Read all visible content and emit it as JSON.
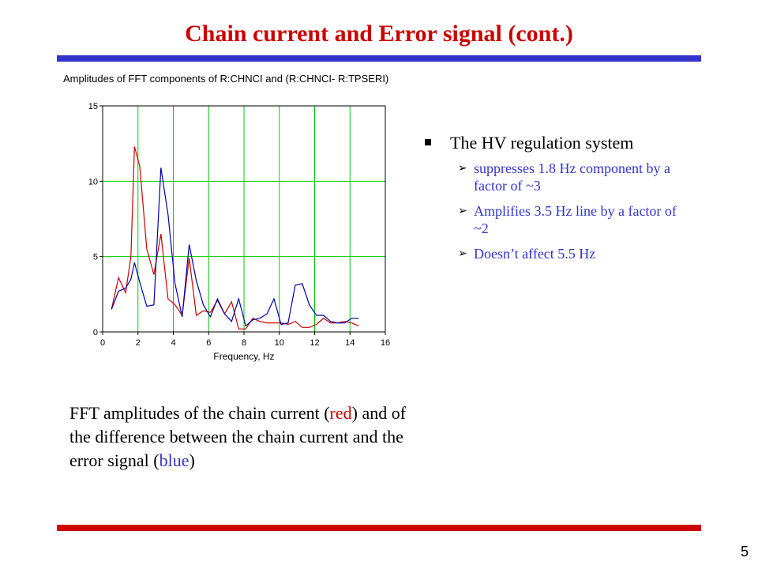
{
  "slide": {
    "title": "Chain current and Error signal  (cont.)",
    "page_number": "5"
  },
  "colors": {
    "title": "#cc0000",
    "top_rule": "#3333cc",
    "bottom_rule": "#cc0000",
    "grid": "#00cc00",
    "chain_current": "#cc0000",
    "difference": "#0000aa",
    "sub_bullet_text": "#3333cc"
  },
  "chart_data": {
    "type": "line",
    "title": "Amplitudes of FFT components of R:CHNCI and (R:CHNCI- R:TPSERI)",
    "xlabel": "Frequency, Hz",
    "ylabel": "",
    "xlim": [
      0,
      16
    ],
    "ylim": [
      0,
      15
    ],
    "x_ticks": [
      "0",
      "2",
      "4",
      "6",
      "8",
      "10",
      "12",
      "14",
      "16"
    ],
    "y_ticks": [
      "0",
      "5",
      "10",
      "15"
    ],
    "grid": true,
    "legend": "none",
    "series": [
      {
        "color": "#cc0000",
        "x": [
          0.5,
          0.9,
          1.3,
          1.6,
          1.8,
          2.1,
          2.5,
          2.9,
          3.3,
          3.7,
          4.1,
          4.5,
          4.9,
          5.3,
          5.7,
          6.1,
          6.5,
          6.9,
          7.3,
          7.7,
          8.1,
          8.5,
          8.9,
          9.3,
          9.7,
          10.1,
          10.5,
          10.9,
          11.3,
          11.7,
          12.1,
          12.5,
          12.9,
          13.3,
          13.7,
          14.1,
          14.5
        ],
        "values": [
          1.5,
          3.6,
          2.6,
          5.0,
          12.3,
          11.0,
          5.5,
          3.8,
          6.5,
          2.2,
          1.8,
          1.1,
          4.9,
          1.1,
          1.4,
          1.3,
          2.1,
          1.2,
          2.0,
          0.2,
          0.2,
          0.9,
          0.7,
          0.6,
          0.6,
          0.6,
          0.5,
          0.7,
          0.3,
          0.3,
          0.5,
          0.9,
          0.6,
          0.6,
          0.7,
          0.6,
          0.4
        ]
      },
      {
        "color": "#0000aa",
        "x": [
          0.5,
          0.9,
          1.3,
          1.6,
          1.8,
          2.1,
          2.5,
          2.9,
          3.3,
          3.7,
          4.1,
          4.5,
          4.9,
          5.3,
          5.7,
          6.1,
          6.5,
          6.9,
          7.3,
          7.7,
          8.1,
          8.5,
          8.9,
          9.3,
          9.7,
          10.1,
          10.5,
          10.9,
          11.3,
          11.7,
          12.1,
          12.5,
          12.9,
          13.3,
          13.7,
          14.1,
          14.5
        ],
        "values": [
          1.5,
          2.7,
          2.9,
          3.5,
          4.6,
          3.3,
          1.7,
          1.8,
          10.9,
          7.8,
          3.2,
          1.0,
          5.8,
          3.4,
          1.8,
          1.0,
          2.2,
          1.2,
          0.7,
          2.2,
          0.4,
          0.8,
          0.9,
          1.2,
          2.2,
          0.5,
          0.6,
          3.1,
          3.2,
          1.8,
          1.1,
          1.1,
          0.7,
          0.6,
          0.6,
          0.9,
          0.9
        ]
      }
    ]
  },
  "bullets": {
    "main": "The HV regulation system",
    "sub": [
      "suppresses 1.8 Hz component by a factor of ~3",
      "Amplifies 3.5 Hz line by a factor of ~2",
      "Doesn’t affect 5.5 Hz"
    ]
  },
  "caption": {
    "part1": "FFT amplitudes of the chain current (",
    "red_word": "red",
    "part2": ") and of the difference between the chain current and the error signal (",
    "blue_word": "blue",
    "part3": ")"
  }
}
